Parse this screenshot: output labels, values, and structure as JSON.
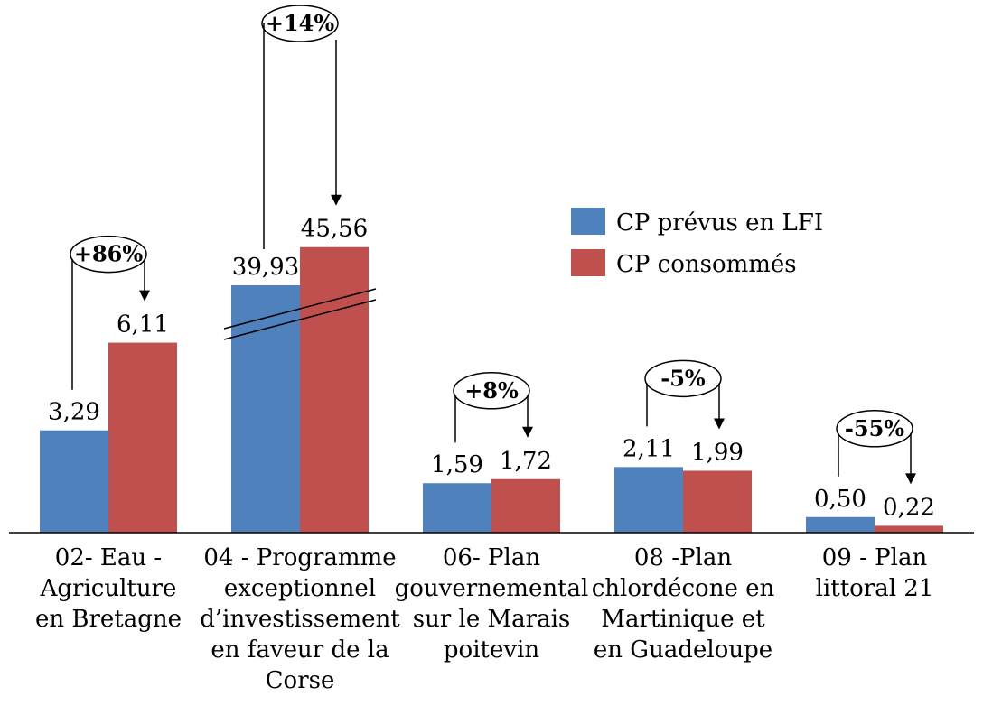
{
  "chart_data": {
    "type": "bar",
    "categories": [
      [
        "02- Eau -",
        "Agriculture",
        "en Bretagne"
      ],
      [
        "04 - Programme",
        "exceptionnel",
        "d’investissement",
        "en faveur de la",
        "Corse"
      ],
      [
        "06- Plan",
        "gouvernemental",
        "sur le Marais",
        "poitevin"
      ],
      [
        "08 -Plan",
        "chlordécone en",
        "Martinique  et",
        "en Guadeloupe"
      ],
      [
        "09 - Plan",
        "littoral 21"
      ]
    ],
    "series": [
      {
        "name": "CP prévus en LFI",
        "color": "#4f81bd",
        "values": [
          3.29,
          39.93,
          1.59,
          2.11,
          0.5
        ],
        "labels": [
          "3,29",
          "39,93",
          "1,59",
          "2,11",
          "0,50"
        ]
      },
      {
        "name": "CP consommés",
        "color": "#c0504d",
        "values": [
          6.11,
          45.56,
          1.72,
          1.99,
          0.22
        ],
        "labels": [
          "6,11",
          "45,56",
          "1,72",
          "1,99",
          "0,22"
        ]
      }
    ],
    "changes": [
      "+86%",
      "+14%",
      "+8%",
      "-5%",
      "-55%"
    ],
    "axis_break": "category 2, between 5 and 35",
    "legend_position": "right-middle",
    "grid": false
  }
}
